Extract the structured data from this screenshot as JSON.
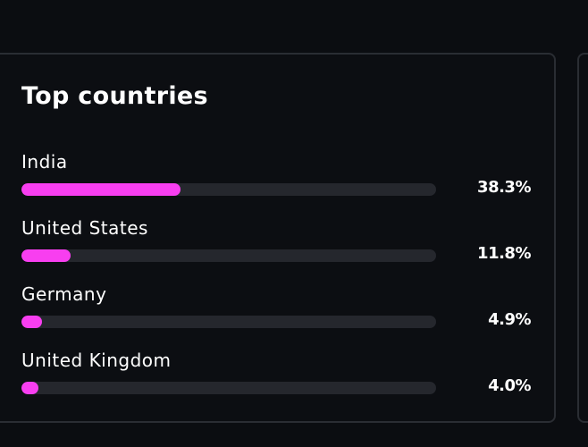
{
  "top_countries": {
    "title": "Top countries",
    "accent_color": "#f83ef0",
    "track_color": "#25272d",
    "rows": [
      {
        "label": "India",
        "value": "38.3%",
        "fraction": 0.383
      },
      {
        "label": "United States",
        "value": "11.8%",
        "fraction": 0.118
      },
      {
        "label": "Germany",
        "value": "4.9%",
        "fraction": 0.049
      },
      {
        "label": "United Kingdom",
        "value": "4.0%",
        "fraction": 0.04
      }
    ]
  }
}
